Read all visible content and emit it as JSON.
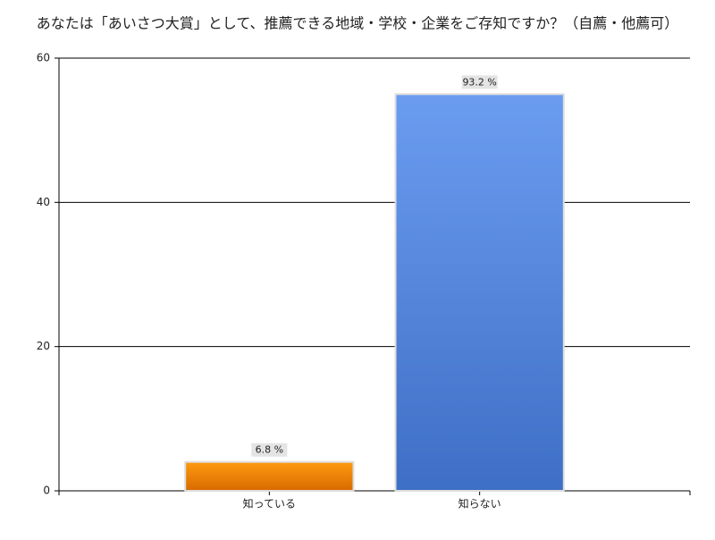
{
  "chart_data": {
    "type": "bar",
    "title": "あなたは「あいさつ大賞」として、推薦できる地域・学校・企業をご存知ですか？（自薦・他薦可）",
    "categories": [
      "知っている",
      "知らない"
    ],
    "values": [
      4,
      55
    ],
    "colors": [
      [
        "#ff9a10",
        "#d86a00"
      ],
      [
        "#6a9cf0",
        "#3e6fc6"
      ]
    ],
    "percent_labels": [
      {
        "value": 6.8,
        "label": "6.8 %"
      },
      {
        "value": 93.2,
        "label": "93.2 %"
      }
    ],
    "ylim": [
      0,
      60
    ],
    "yticks": [
      0,
      20,
      40,
      60
    ],
    "grid": true
  }
}
